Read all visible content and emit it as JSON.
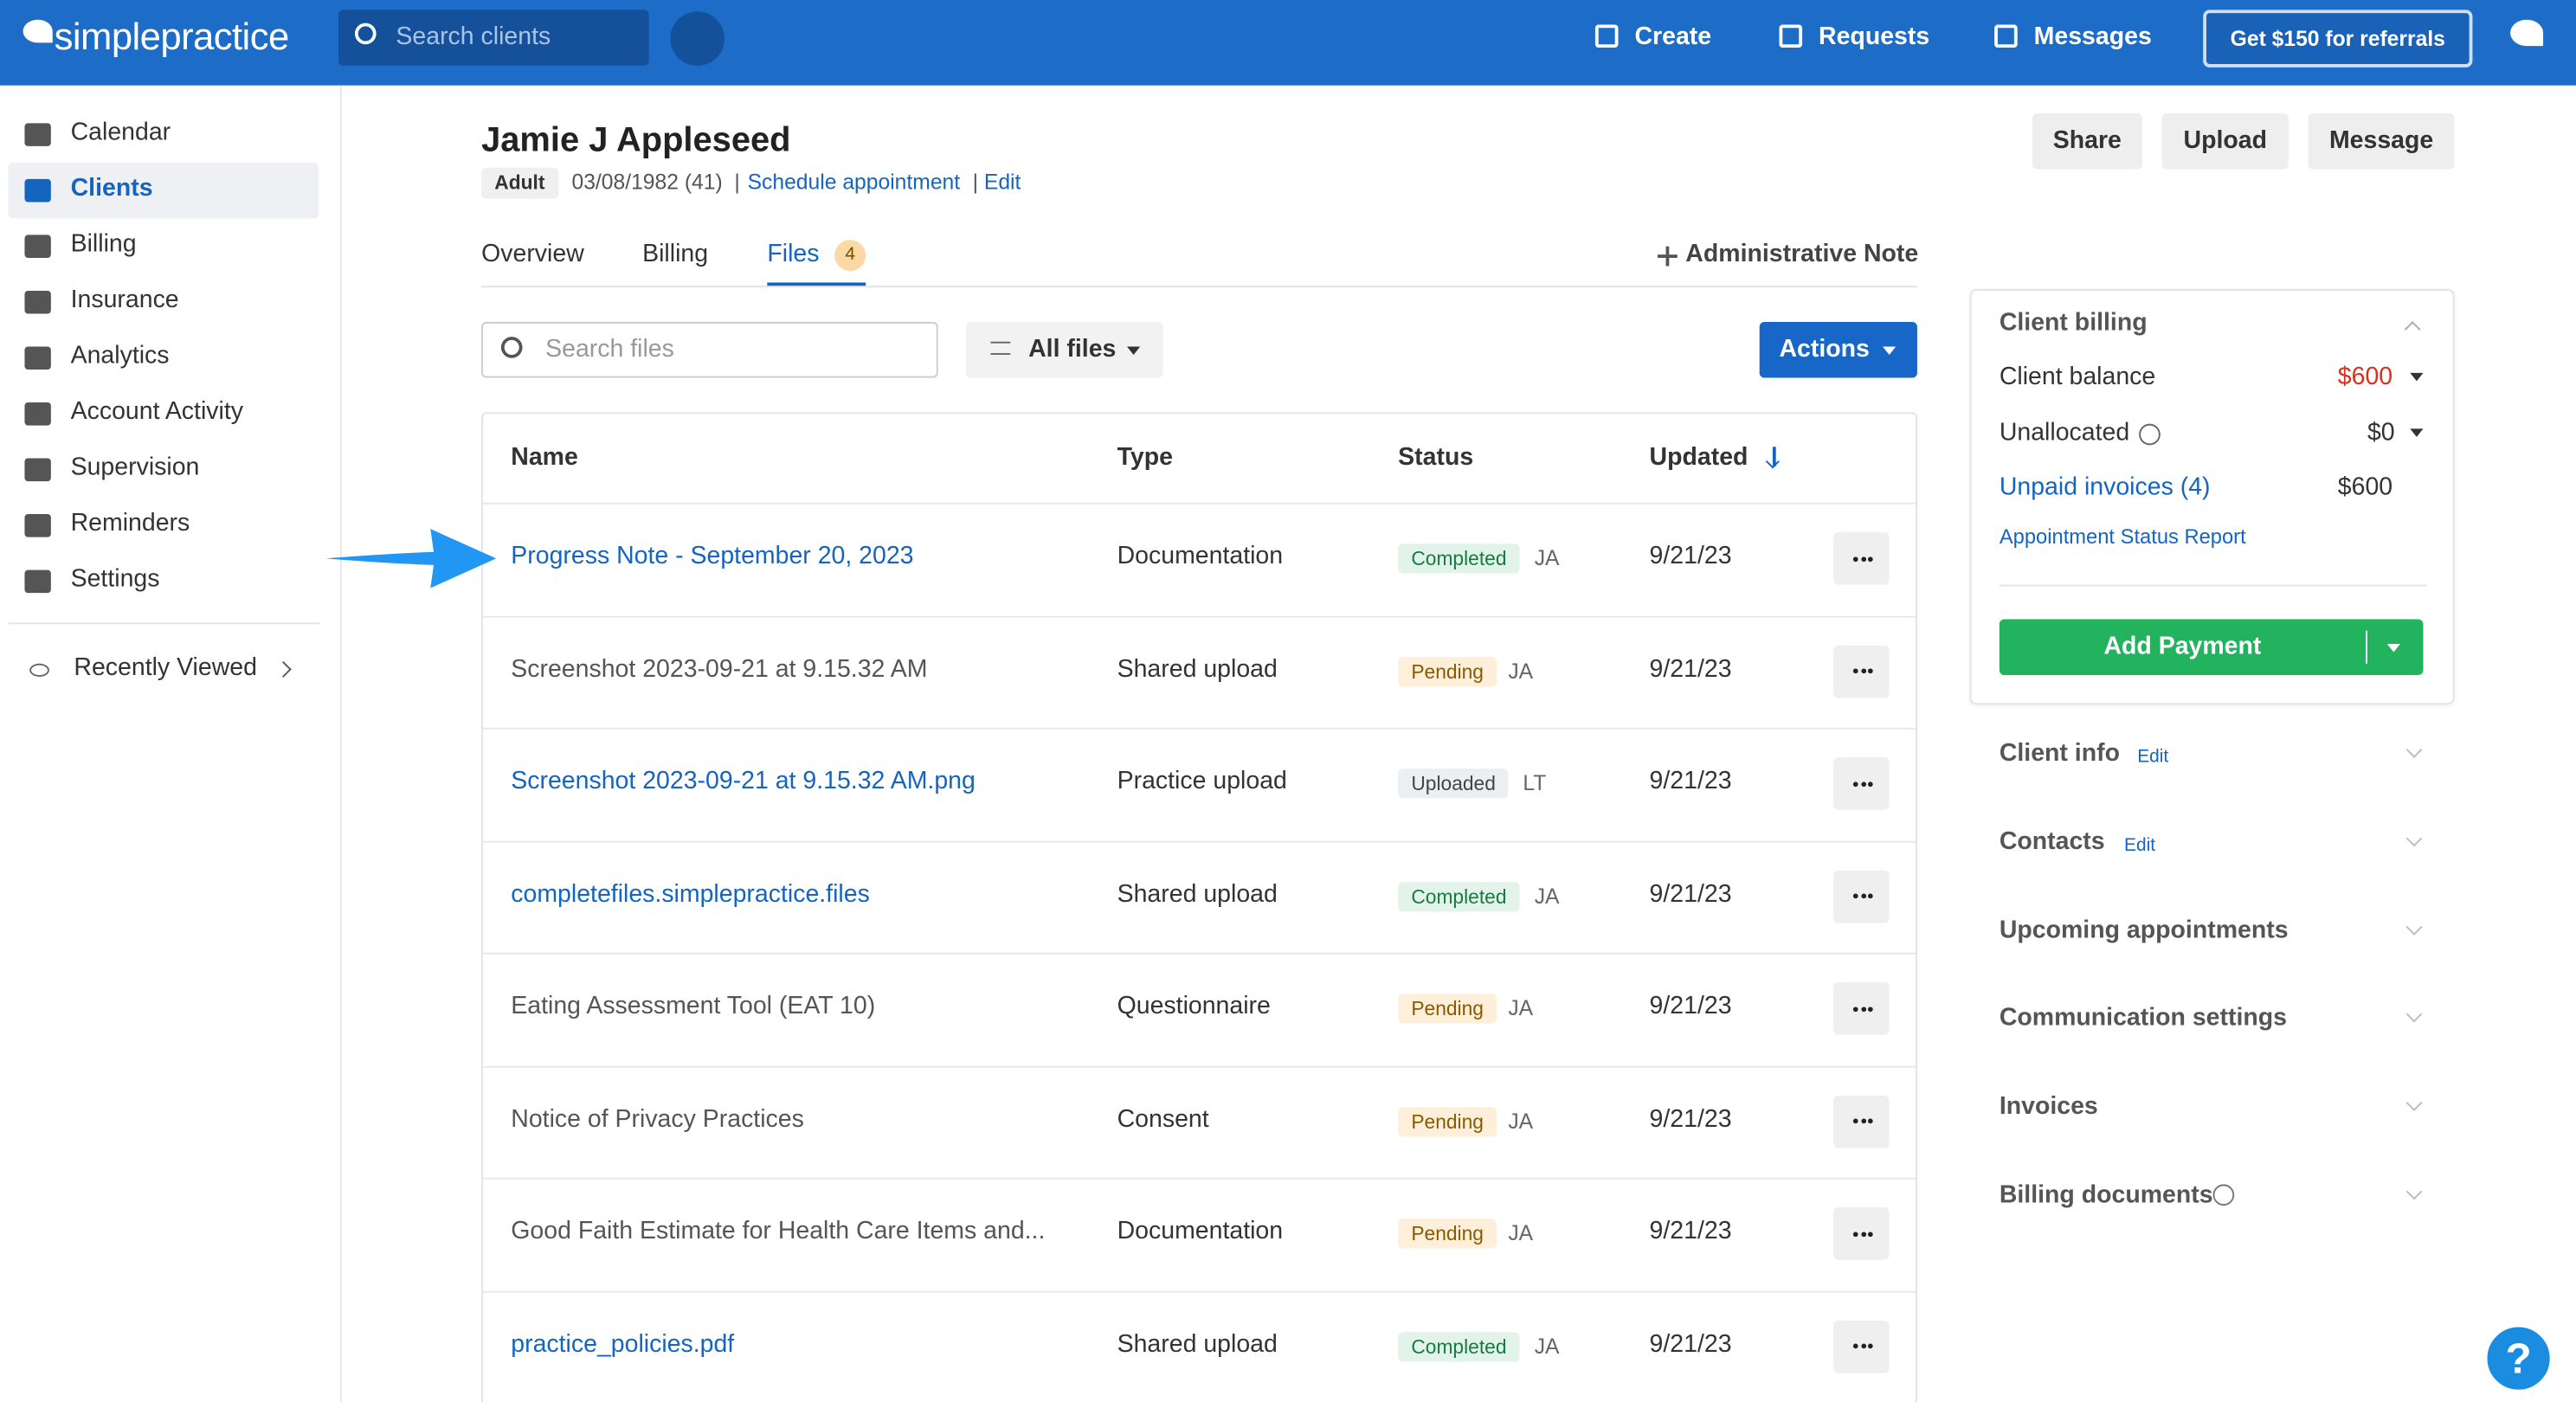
{
  "header": {
    "logo": "simplepractice",
    "search_placeholder": "Search clients",
    "nav": [
      "Create",
      "Requests",
      "Messages"
    ],
    "referral": "Get $150 for referrals"
  },
  "sidebar": {
    "items": [
      {
        "label": "Calendar"
      },
      {
        "label": "Clients",
        "active": true
      },
      {
        "label": "Billing"
      },
      {
        "label": "Insurance"
      },
      {
        "label": "Analytics"
      },
      {
        "label": "Account Activity"
      },
      {
        "label": "Supervision"
      },
      {
        "label": "Reminders"
      },
      {
        "label": "Settings"
      }
    ],
    "recently_viewed": "Recently Viewed"
  },
  "client": {
    "name": "Jamie J Appleseed",
    "tag": "Adult",
    "dob": "03/08/1982 (41)",
    "separator": "|",
    "schedule": "Schedule appointment",
    "edit": "Edit"
  },
  "top_actions": [
    "Share",
    "Upload",
    "Message"
  ],
  "tabs": {
    "items": [
      "Overview",
      "Billing",
      "Files"
    ],
    "active_index": 2,
    "files_badge": "4",
    "admin_note": "Administrative Note"
  },
  "toolbar": {
    "search_placeholder": "Search files",
    "filter": "All files",
    "actions": "Actions"
  },
  "table": {
    "columns": [
      "Name",
      "Type",
      "Status",
      "Updated"
    ],
    "rows": [
      {
        "name": "Progress Note - September 20, 2023",
        "link": true,
        "type": "Documentation",
        "status": "Completed",
        "status_style": "success",
        "initials": "JA",
        "updated": "9/21/23"
      },
      {
        "name": "Screenshot 2023-09-21 at 9.15.32 AM",
        "link": false,
        "type": "Shared upload",
        "status": "Pending",
        "status_style": "warning",
        "initials": "JA",
        "updated": "9/21/23"
      },
      {
        "name": "Screenshot 2023-09-21 at 9.15.32 AM.png",
        "link": true,
        "type": "Practice upload",
        "status": "Uploaded",
        "status_style": "neutral",
        "initials": "LT",
        "updated": "9/21/23"
      },
      {
        "name": "completefiles.simplepractice.files",
        "link": true,
        "type": "Shared upload",
        "status": "Completed",
        "status_style": "success",
        "initials": "JA",
        "updated": "9/21/23"
      },
      {
        "name": "Eating Assessment Tool (EAT 10)",
        "link": false,
        "type": "Questionnaire",
        "status": "Pending",
        "status_style": "warning",
        "initials": "JA",
        "updated": "9/21/23"
      },
      {
        "name": "Notice of Privacy Practices",
        "link": false,
        "type": "Consent",
        "status": "Pending",
        "status_style": "warning",
        "initials": "JA",
        "updated": "9/21/23"
      },
      {
        "name": "Good Faith Estimate for Health Care Items and...",
        "link": false,
        "type": "Documentation",
        "status": "Pending",
        "status_style": "warning",
        "initials": "JA",
        "updated": "9/21/23"
      },
      {
        "name": "practice_policies.pdf",
        "link": true,
        "type": "Shared upload",
        "status": "Completed",
        "status_style": "success",
        "initials": "JA",
        "updated": "9/21/23"
      }
    ]
  },
  "billing": {
    "title": "Client billing",
    "balance_label": "Client balance",
    "balance": "$600",
    "unallocated_label": "Unallocated",
    "unallocated": "$0",
    "unpaid_label": "Unpaid invoices (4)",
    "unpaid": "$600",
    "report": "Appointment Status Report",
    "add_payment": "Add Payment"
  },
  "sections": [
    {
      "label": "Client info",
      "edit": "Edit"
    },
    {
      "label": "Contacts",
      "edit": "Edit"
    },
    {
      "label": "Upcoming appointments"
    },
    {
      "label": "Communication settings"
    },
    {
      "label": "Invoices"
    },
    {
      "label": "Billing documents",
      "help": true
    }
  ],
  "help": "?"
}
